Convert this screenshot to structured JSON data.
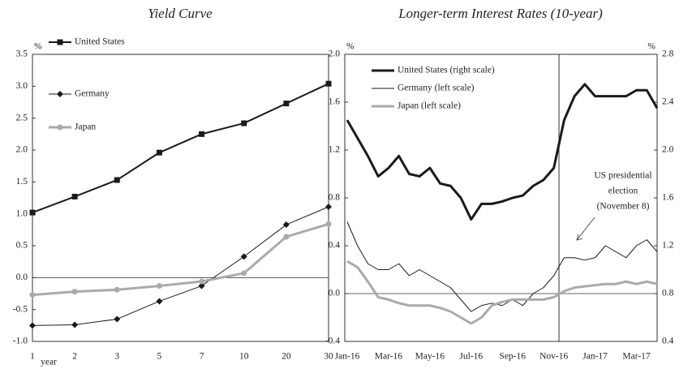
{
  "chart_data": [
    {
      "type": "line",
      "title": "Yield Curve",
      "x_label": "year",
      "y_unit": "%",
      "categories": [
        "1",
        "2",
        "3",
        "5",
        "7",
        "10",
        "20",
        "30"
      ],
      "ylim": [
        -1,
        3.5
      ],
      "yticks": [
        {
          "value": -1,
          "label": "-1.0"
        },
        {
          "value": -0.5,
          "label": "-0.5"
        },
        {
          "value": 0,
          "label": "0.0"
        },
        0.5,
        {
          "value": 1,
          "label": "1.0"
        },
        1.5,
        {
          "value": 2,
          "label": "2.0"
        },
        2.5,
        {
          "value": 3,
          "label": "3.0"
        },
        3.5
      ],
      "series": [
        {
          "name": "United States",
          "color": "#1a1a1a",
          "line_width": 2,
          "marker": "square",
          "values": [
            1.02,
            1.27,
            1.53,
            1.96,
            2.25,
            2.42,
            2.73,
            3.04
          ]
        },
        {
          "name": "Germany",
          "color": "#1a1a1a",
          "line_width": 1,
          "marker": "diamond",
          "values": [
            -0.75,
            -0.74,
            -0.65,
            -0.37,
            -0.13,
            0.33,
            0.83,
            1.11
          ]
        },
        {
          "name": "Japan",
          "color": "#aaaaaa",
          "line_width": 3,
          "marker": "circle",
          "values": [
            -0.27,
            -0.22,
            -0.19,
            -0.13,
            -0.06,
            0.07,
            0.64,
            0.84
          ]
        }
      ]
    },
    {
      "type": "line",
      "title": "Longer-term Interest Rates (10-year)",
      "y_unit": "%",
      "y2_unit": "%",
      "categories": [
        "Jan-16",
        null,
        null,
        null,
        "Mar-16",
        null,
        null,
        null,
        "May-16",
        null,
        null,
        null,
        "Jul-16",
        null,
        null,
        null,
        "Sep-16",
        null,
        null,
        null,
        "Nov-16",
        null,
        null,
        null,
        "Jan-17",
        null,
        null,
        null,
        "Mar-17",
        null,
        null
      ],
      "ylim": [
        -0.4,
        2.0
      ],
      "yticks": [
        -0.4,
        {
          "value": 0,
          "label": "0.0"
        },
        0.4,
        0.8,
        1.2,
        1.6,
        {
          "value": 2,
          "label": "2.0"
        }
      ],
      "y2lim": [
        0.4,
        2.8
      ],
      "y2ticks": [
        0.4,
        0.8,
        1.2,
        1.6,
        {
          "value": 2,
          "label": "2.0"
        },
        2.4,
        2.8
      ],
      "annotation": [
        "US presidential",
        "election",
        "(November 8)"
      ],
      "series": [
        {
          "name": "United States (right scale)",
          "axis": "y2",
          "color": "#1a1a1a",
          "line_width": 3,
          "values": [
            2.25,
            2.1,
            1.95,
            1.78,
            1.85,
            1.95,
            1.8,
            1.78,
            1.85,
            1.72,
            1.7,
            1.6,
            1.42,
            1.55,
            1.55,
            1.57,
            1.6,
            1.62,
            1.7,
            1.75,
            1.85,
            2.25,
            2.45,
            2.55,
            2.45,
            2.45,
            2.45,
            2.45,
            2.5,
            2.5,
            2.35
          ]
        },
        {
          "name": "Germany (left scale)",
          "color": "#1a1a1a",
          "line_width": 1,
          "values": [
            0.6,
            0.4,
            0.25,
            0.2,
            0.2,
            0.25,
            0.15,
            0.2,
            0.15,
            0.1,
            0.05,
            -0.05,
            -0.15,
            -0.1,
            -0.08,
            -0.1,
            -0.05,
            -0.1,
            0.0,
            0.05,
            0.15,
            0.3,
            0.3,
            0.28,
            0.3,
            0.4,
            0.35,
            0.3,
            0.4,
            0.45,
            0.35
          ]
        },
        {
          "name": "Japan (left scale)",
          "color": "#aaaaaa",
          "line_width": 3,
          "values": [
            0.27,
            0.22,
            0.1,
            -0.03,
            -0.05,
            -0.08,
            -0.1,
            -0.1,
            -0.1,
            -0.12,
            -0.15,
            -0.2,
            -0.25,
            -0.2,
            -0.1,
            -0.07,
            -0.05,
            -0.05,
            -0.05,
            -0.05,
            -0.03,
            0.02,
            0.05,
            0.06,
            0.07,
            0.08,
            0.08,
            0.1,
            0.08,
            0.1,
            0.08
          ]
        }
      ]
    }
  ]
}
